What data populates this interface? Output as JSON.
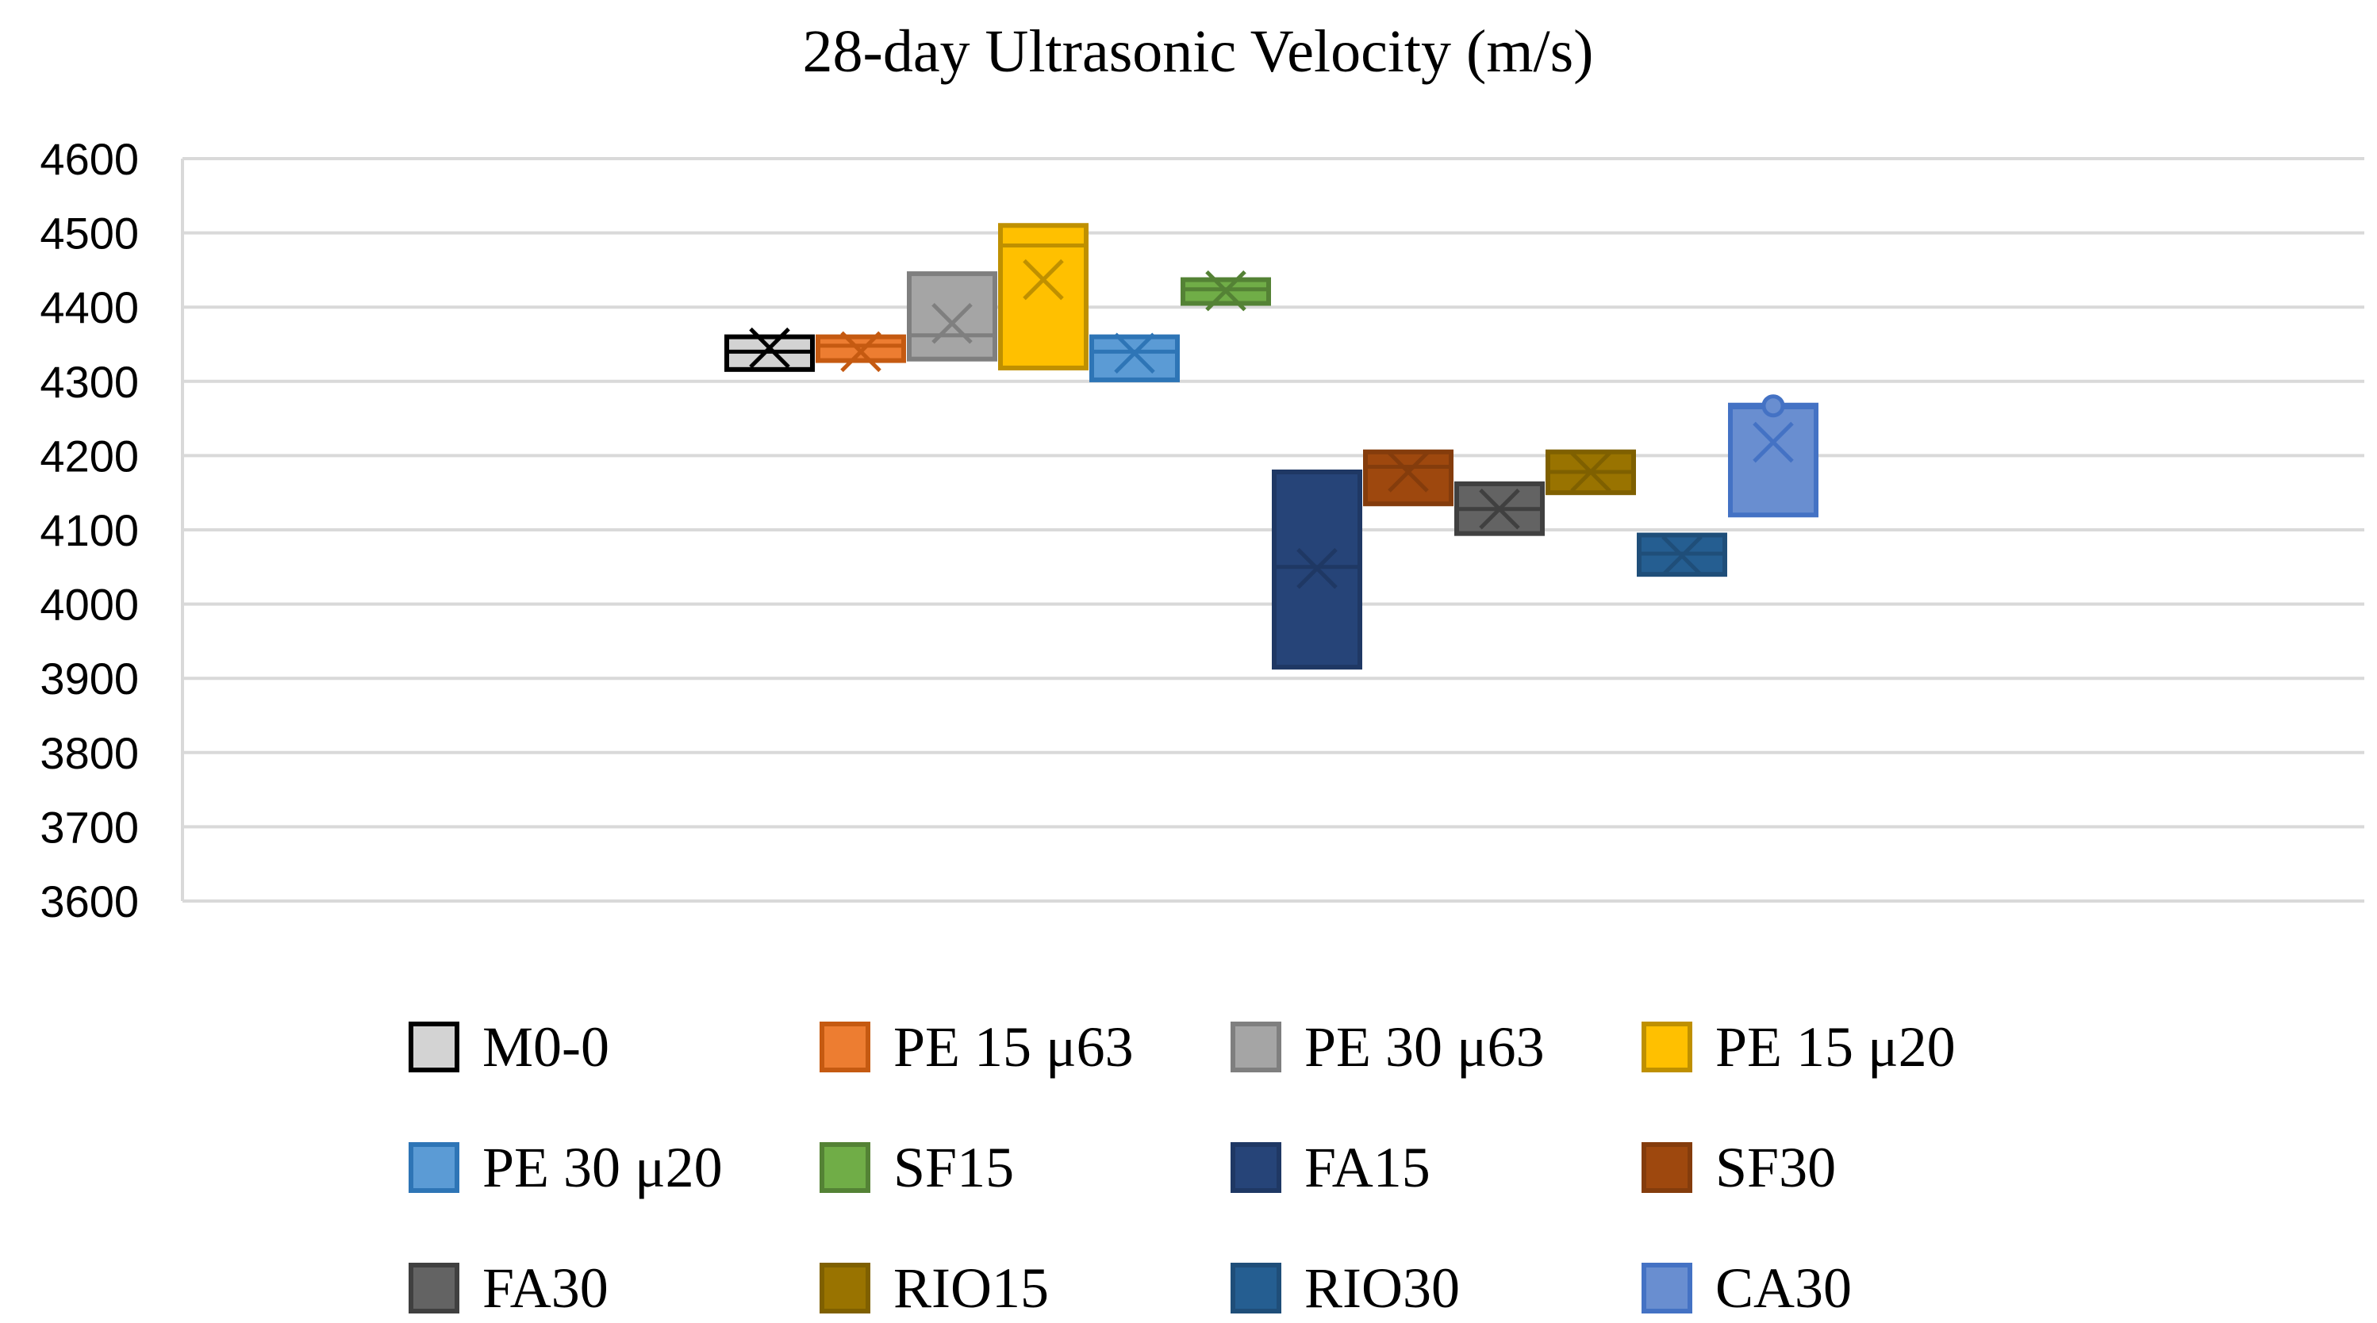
{
  "chart_data": {
    "type": "box",
    "title": "28-day Ultrasonic Velocity (m/s)",
    "xlabel": "",
    "ylabel": "",
    "ylim": [
      3600,
      4600
    ],
    "yticks": [
      4600,
      4500,
      4400,
      4300,
      4200,
      4100,
      4000,
      3900,
      3800,
      3700,
      3600
    ],
    "grid": true,
    "legend_position": "bottom",
    "series": [
      {
        "name": "M0-0",
        "color": "#d3d3d3",
        "border": "#000000",
        "q1": 4316,
        "median": 4340,
        "q3": 4360,
        "mean": 4345,
        "outliers": []
      },
      {
        "name": "PE 15 μ63",
        "color": "#ed7d31",
        "border": "#c55a11",
        "q1": 4328,
        "median": 4348,
        "q3": 4360,
        "mean": 4340,
        "outliers": []
      },
      {
        "name": "PE 30 μ63",
        "color": "#a5a5a5",
        "border": "#7f7f7f",
        "q1": 4330,
        "median": 4362,
        "q3": 4445,
        "mean": 4378,
        "outliers": []
      },
      {
        "name": "PE 15 μ20",
        "color": "#ffc000",
        "border": "#bf9000",
        "q1": 4318,
        "median": 4483,
        "q3": 4510,
        "mean": 4437,
        "outliers": []
      },
      {
        "name": "PE 30 μ20",
        "color": "#5b9bd5",
        "border": "#2e75b6",
        "q1": 4302,
        "median": 4340,
        "q3": 4360,
        "mean": 4338,
        "outliers": []
      },
      {
        "name": "SF15",
        "color": "#70ad47",
        "border": "#548235",
        "q1": 4405,
        "median": 4424,
        "q3": 4437,
        "mean": 4422,
        "outliers": []
      },
      {
        "name": "FA15",
        "color": "#264478",
        "border": "#1f3864",
        "q1": 3915,
        "median": 4050,
        "q3": 4178,
        "mean": 4048,
        "outliers": []
      },
      {
        "name": "SF30",
        "color": "#9e480e",
        "border": "#843c0c",
        "q1": 4135,
        "median": 4185,
        "q3": 4205,
        "mean": 4178,
        "outliers": []
      },
      {
        "name": "FA30",
        "color": "#636363",
        "border": "#404040",
        "q1": 4095,
        "median": 4128,
        "q3": 4162,
        "mean": 4128,
        "outliers": []
      },
      {
        "name": "RIO15",
        "color": "#997300",
        "border": "#7f6000",
        "q1": 4150,
        "median": 4178,
        "q3": 4205,
        "mean": 4178,
        "outliers": []
      },
      {
        "name": "RIO30",
        "color": "#255e91",
        "border": "#1f4e79",
        "q1": 4040,
        "median": 4068,
        "q3": 4093,
        "mean": 4065,
        "outliers": []
      },
      {
        "name": "CA30",
        "color": "#698ed0",
        "border": "#4472c4",
        "q1": 4120,
        "median": 4265,
        "q3": 4268,
        "mean": 4218,
        "outliers": [
          4267
        ]
      }
    ]
  }
}
